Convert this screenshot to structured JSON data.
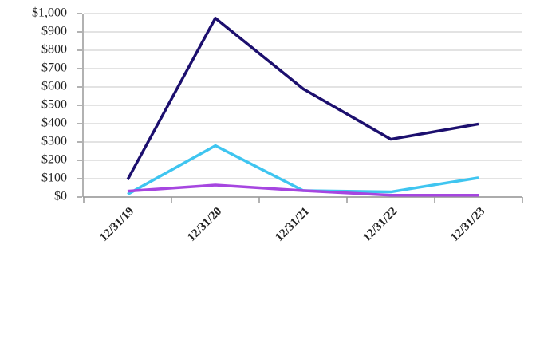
{
  "chart_data": {
    "type": "line",
    "categories": [
      "12/31/19",
      "12/31/20",
      "12/31/21",
      "12/31/22",
      "12/31/23"
    ],
    "series": [
      {
        "color": "#1c0f6e",
        "values": [
          95,
          975,
          590,
          315,
          398
        ]
      },
      {
        "color": "#3fc5f0",
        "values": [
          15,
          280,
          35,
          28,
          105
        ]
      },
      {
        "color": "#a646e0",
        "values": [
          32,
          65,
          35,
          10,
          10
        ]
      }
    ],
    "ylim": [
      0,
      1000
    ],
    "yticks": [
      {
        "value": 0,
        "label": "$0"
      },
      {
        "value": 100,
        "label": "$100"
      },
      {
        "value": 200,
        "label": "$200"
      },
      {
        "value": 300,
        "label": "$300"
      },
      {
        "value": 400,
        "label": "$400"
      },
      {
        "value": 500,
        "label": "$500"
      },
      {
        "value": 600,
        "label": "$600"
      },
      {
        "value": 700,
        "label": "$700"
      },
      {
        "value": 800,
        "label": "$800"
      },
      {
        "value": 900,
        "label": "$900"
      },
      {
        "value": 1000,
        "label": "$1,000"
      }
    ],
    "grid": true
  }
}
